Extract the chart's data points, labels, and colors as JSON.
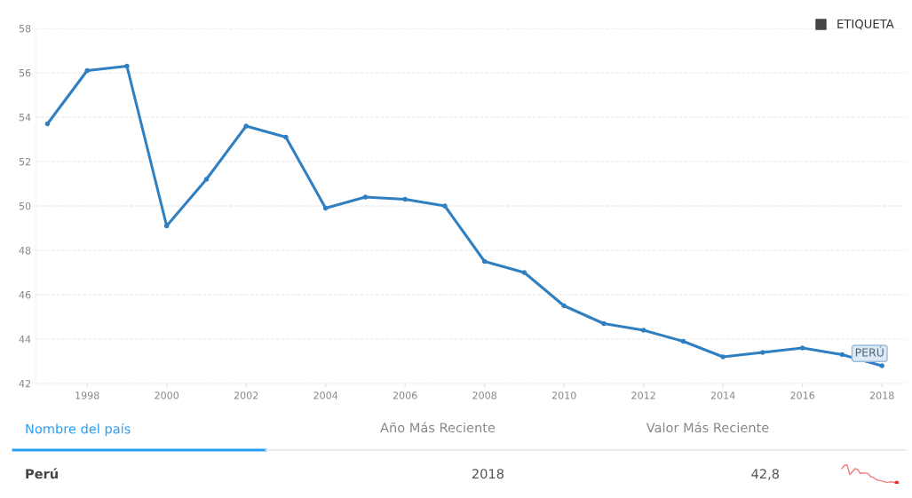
{
  "chart_data": {
    "type": "line",
    "x": [
      1997,
      1998,
      1999,
      2000,
      2001,
      2002,
      2003,
      2004,
      2005,
      2006,
      2007,
      2008,
      2009,
      2010,
      2011,
      2012,
      2013,
      2014,
      2015,
      2016,
      2017,
      2018
    ],
    "series": [
      {
        "name": "PERÚ",
        "color": "#2f7fc1",
        "values": [
          53.7,
          56.1,
          56.3,
          49.1,
          51.2,
          53.6,
          53.1,
          49.9,
          50.4,
          50.3,
          50.0,
          47.5,
          47.0,
          45.5,
          44.7,
          44.4,
          43.9,
          43.2,
          43.4,
          43.6,
          43.3,
          42.8
        ]
      }
    ],
    "xlim": [
      1996.7,
      2018.6
    ],
    "xticks": [
      1998,
      2000,
      2002,
      2004,
      2006,
      2008,
      2010,
      2012,
      2014,
      2016,
      2018
    ],
    "ylim": [
      42,
      58
    ],
    "yticks": [
      42,
      44,
      46,
      48,
      50,
      52,
      54,
      56,
      58
    ],
    "grid": "y",
    "legend": false,
    "marker": "circle",
    "line_style": "solid",
    "annotations": [
      "ETIQUETA",
      "Nombre del país",
      "Año Más Reciente",
      "Valor Más Reciente",
      "Perú",
      "2018",
      "42,8"
    ]
  }
}
